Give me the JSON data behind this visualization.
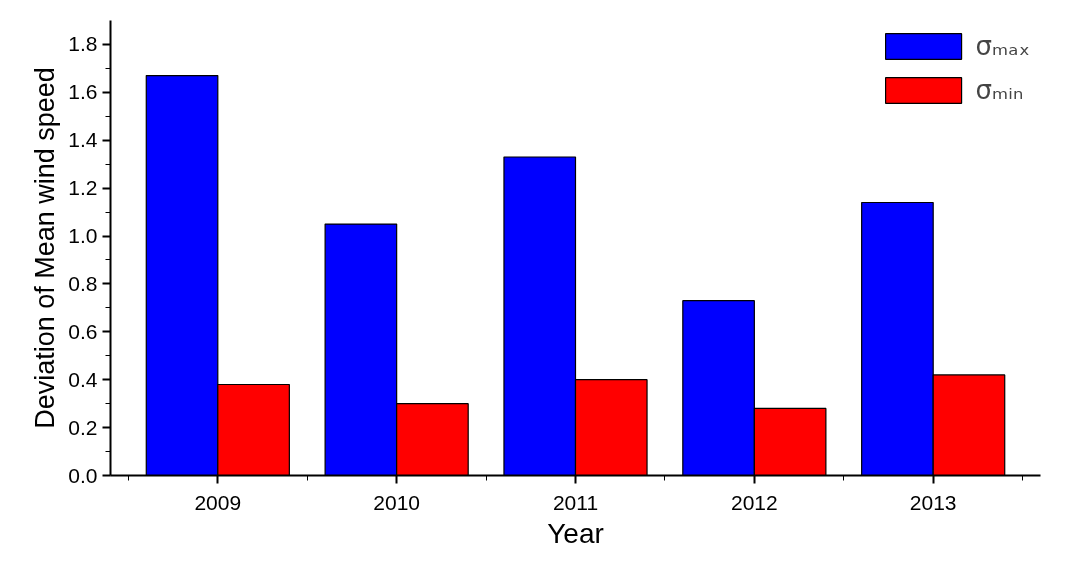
{
  "chart_data": {
    "type": "bar",
    "xlabel": "Year",
    "ylabel": "Deviation of Mean wind speed",
    "categories": [
      "2009",
      "2010",
      "2011",
      "2012",
      "2013"
    ],
    "series": [
      {
        "name": "σₘₐₓ",
        "color": "#0000ff",
        "values": [
          1.67,
          1.05,
          1.33,
          0.73,
          1.14
        ]
      },
      {
        "name": "σₘᵢₙ",
        "color": "#ff0000",
        "values": [
          0.38,
          0.3,
          0.4,
          0.28,
          0.42
        ]
      }
    ],
    "ylim": [
      0,
      1.9
    ],
    "yticks": [
      {
        "value": 0,
        "label": "0.0"
      },
      {
        "value": 0.2,
        "label": "0.2"
      },
      {
        "value": 0.4,
        "label": "0.4"
      },
      {
        "value": 0.6,
        "label": "0.6"
      },
      {
        "value": 0.8,
        "label": "0.8"
      },
      {
        "value": 1.0,
        "label": "1.0"
      },
      {
        "value": 1.2,
        "label": "1.2"
      },
      {
        "value": 1.4,
        "label": "1.4"
      },
      {
        "value": 1.6,
        "label": "1.6"
      },
      {
        "value": 1.8,
        "label": "1.8"
      }
    ],
    "grid": false,
    "legend": "top right"
  }
}
